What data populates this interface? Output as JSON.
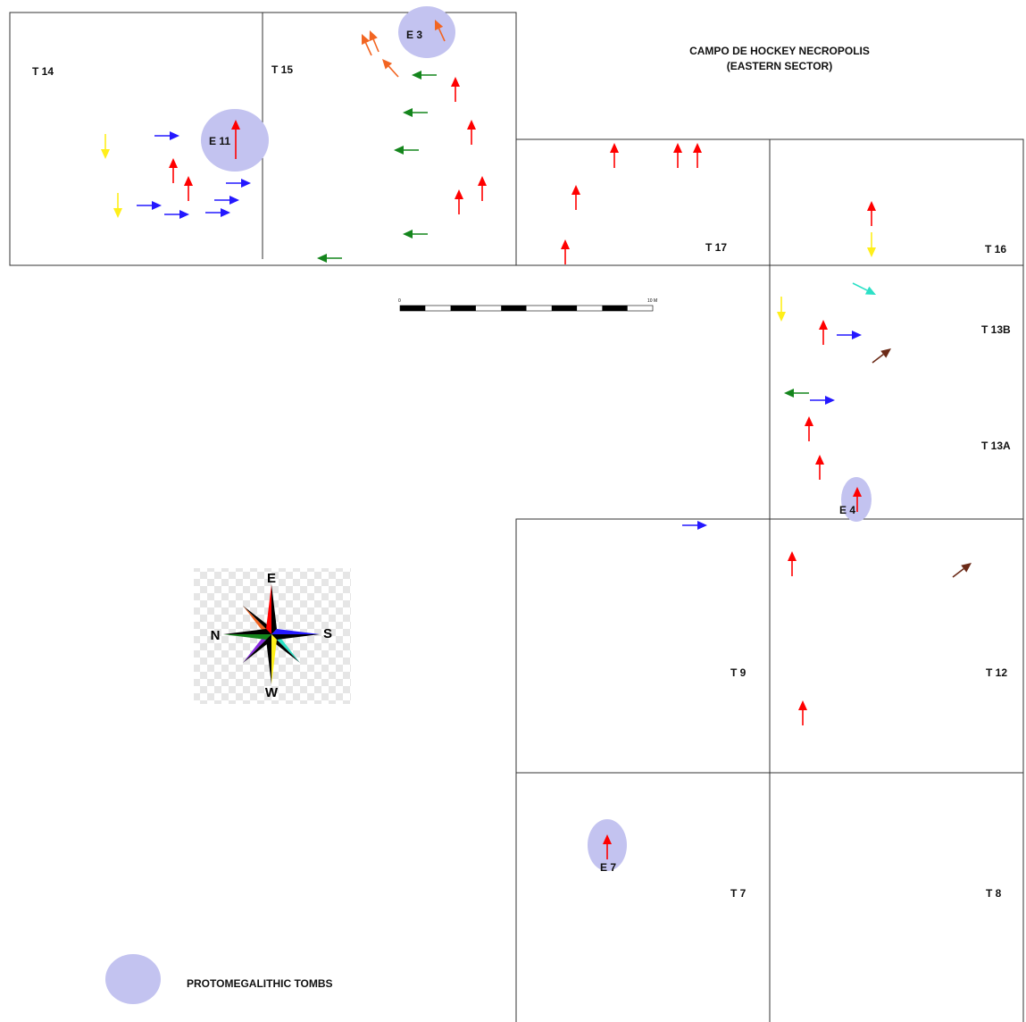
{
  "title": {
    "line1": "CAMPO DE HOCKEY NECROPOLIS",
    "line2": "(EASTERN SECTOR)"
  },
  "trenches": [
    "T 14",
    "T 15",
    "T 17",
    "T 16",
    "T 13B",
    "T 13A",
    "T 9",
    "T 12",
    "T 7",
    "T 8"
  ],
  "tombs": [
    "E 3",
    "E 11",
    "E 4",
    "E 7"
  ],
  "scale_bar": {
    "start": "0",
    "end": "10 M"
  },
  "compass": {
    "top": "E",
    "left": "N",
    "right": "S",
    "bottom": "W"
  },
  "legend": {
    "label": "PROTOMEGALITHIC TOMBS"
  },
  "colors": {
    "red": "#ff0000",
    "blue": "#2418ff",
    "green": "#14851c",
    "yellow": "#ffef1a",
    "orange": "#f26522",
    "cyan": "#2be0c6",
    "brown": "#6b2a17",
    "tomb_fill": "#c3c3f0",
    "line": "#333333"
  }
}
